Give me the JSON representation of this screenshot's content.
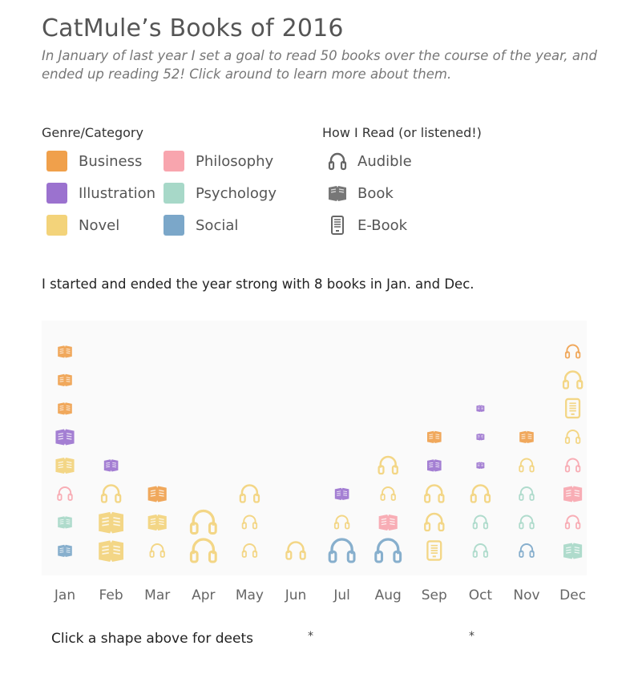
{
  "header": {
    "title": "CatMule’s Books of 2016",
    "subtitle": "In January of last year I set a goal to read 50 books over the course of the year, and ended up reading 52! Click around to learn more about them."
  },
  "legend": {
    "genre_title": "Genre/Category",
    "genres": [
      {
        "name": "Business",
        "color": "#F0A04B"
      },
      {
        "name": "Illustration",
        "color": "#9B72CF"
      },
      {
        "name": "Novel",
        "color": "#F3D37A"
      },
      {
        "name": "Philosophy",
        "color": "#F8A5AE"
      },
      {
        "name": "Psychology",
        "color": "#A7D8C8"
      },
      {
        "name": "Social",
        "color": "#7BA7C9"
      }
    ],
    "format_title": "How I Read (or listened!)",
    "formats": [
      {
        "name": "Audible",
        "icon": "headphones-icon"
      },
      {
        "name": "Book",
        "icon": "open-book-icon"
      },
      {
        "name": "E-Book",
        "icon": "ereader-icon"
      }
    ]
  },
  "note": "I started and ended the year strong with 8 books in Jan. and Dec.",
  "chart_data": {
    "type": "scatter",
    "categories": [
      "Jan",
      "Feb",
      "Mar",
      "Apr",
      "May",
      "Jun",
      "Jul",
      "Aug",
      "Sep",
      "Oct",
      "Nov",
      "Dec"
    ],
    "books_per_month": [
      8,
      4,
      3,
      2,
      3,
      1,
      3,
      4,
      5,
      6,
      5,
      8
    ],
    "books": [
      {
        "month": "Jan",
        "stack": 1,
        "genre": "Social",
        "format": "Book",
        "size": "small"
      },
      {
        "month": "Jan",
        "stack": 2,
        "genre": "Psychology",
        "format": "Book",
        "size": "small"
      },
      {
        "month": "Jan",
        "stack": 3,
        "genre": "Philosophy",
        "format": "Audible",
        "size": "small"
      },
      {
        "month": "Jan",
        "stack": 4,
        "genre": "Novel",
        "format": "Book",
        "size": "medium"
      },
      {
        "month": "Jan",
        "stack": 5,
        "genre": "Illustration",
        "format": "Book",
        "size": "medium"
      },
      {
        "month": "Jan",
        "stack": 6,
        "genre": "Business",
        "format": "Book",
        "size": "small"
      },
      {
        "month": "Jan",
        "stack": 7,
        "genre": "Business",
        "format": "Book",
        "size": "small"
      },
      {
        "month": "Jan",
        "stack": 8,
        "genre": "Business",
        "format": "Book",
        "size": "small"
      },
      {
        "month": "Feb",
        "stack": 1,
        "genre": "Novel",
        "format": "Book",
        "size": "large"
      },
      {
        "month": "Feb",
        "stack": 2,
        "genre": "Novel",
        "format": "Book",
        "size": "large"
      },
      {
        "month": "Feb",
        "stack": 3,
        "genre": "Novel",
        "format": "Audible",
        "size": "medium"
      },
      {
        "month": "Feb",
        "stack": 4,
        "genre": "Illustration",
        "format": "Book",
        "size": "small"
      },
      {
        "month": "Mar",
        "stack": 1,
        "genre": "Novel",
        "format": "Audible",
        "size": "small"
      },
      {
        "month": "Mar",
        "stack": 2,
        "genre": "Novel",
        "format": "Book",
        "size": "medium"
      },
      {
        "month": "Mar",
        "stack": 3,
        "genre": "Business",
        "format": "Book",
        "size": "medium"
      },
      {
        "month": "Apr",
        "stack": 1,
        "genre": "Novel",
        "format": "Audible",
        "size": "large"
      },
      {
        "month": "Apr",
        "stack": 2,
        "genre": "Novel",
        "format": "Audible",
        "size": "large"
      },
      {
        "month": "May",
        "stack": 1,
        "genre": "Novel",
        "format": "Audible",
        "size": "small"
      },
      {
        "month": "May",
        "stack": 2,
        "genre": "Novel",
        "format": "Audible",
        "size": "small"
      },
      {
        "month": "May",
        "stack": 3,
        "genre": "Novel",
        "format": "Audible",
        "size": "medium"
      },
      {
        "month": "Jun",
        "stack": 1,
        "genre": "Novel",
        "format": "Audible",
        "size": "medium"
      },
      {
        "month": "Jul",
        "stack": 1,
        "genre": "Social",
        "format": "Audible",
        "size": "large"
      },
      {
        "month": "Jul",
        "stack": 2,
        "genre": "Novel",
        "format": "Audible",
        "size": "small"
      },
      {
        "month": "Jul",
        "stack": 3,
        "genre": "Illustration",
        "format": "Book",
        "size": "small"
      },
      {
        "month": "Aug",
        "stack": 1,
        "genre": "Social",
        "format": "Audible",
        "size": "large"
      },
      {
        "month": "Aug",
        "stack": 2,
        "genre": "Philosophy",
        "format": "Book",
        "size": "medium"
      },
      {
        "month": "Aug",
        "stack": 3,
        "genre": "Novel",
        "format": "Audible",
        "size": "small"
      },
      {
        "month": "Aug",
        "stack": 4,
        "genre": "Novel",
        "format": "Audible",
        "size": "medium"
      },
      {
        "month": "Sep",
        "stack": 1,
        "genre": "Novel",
        "format": "E-Book",
        "size": "medium"
      },
      {
        "month": "Sep",
        "stack": 2,
        "genre": "Novel",
        "format": "Audible",
        "size": "medium"
      },
      {
        "month": "Sep",
        "stack": 3,
        "genre": "Novel",
        "format": "Audible",
        "size": "medium"
      },
      {
        "month": "Sep",
        "stack": 4,
        "genre": "Illustration",
        "format": "Book",
        "size": "small"
      },
      {
        "month": "Sep",
        "stack": 5,
        "genre": "Business",
        "format": "Book",
        "size": "small"
      },
      {
        "month": "Oct",
        "stack": 1,
        "genre": "Psychology",
        "format": "Audible",
        "size": "small"
      },
      {
        "month": "Oct",
        "stack": 2,
        "genre": "Psychology",
        "format": "Audible",
        "size": "small"
      },
      {
        "month": "Oct",
        "stack": 3,
        "genre": "Novel",
        "format": "Audible",
        "size": "medium"
      },
      {
        "month": "Oct",
        "stack": 4,
        "genre": "Illustration",
        "format": "Book",
        "size": "tiny"
      },
      {
        "month": "Oct",
        "stack": 5,
        "genre": "Illustration",
        "format": "Book",
        "size": "tiny"
      },
      {
        "month": "Oct",
        "stack": 6,
        "genre": "Illustration",
        "format": "Book",
        "size": "tiny"
      },
      {
        "month": "Nov",
        "stack": 1,
        "genre": "Social",
        "format": "Audible",
        "size": "small"
      },
      {
        "month": "Nov",
        "stack": 2,
        "genre": "Psychology",
        "format": "Audible",
        "size": "small"
      },
      {
        "month": "Nov",
        "stack": 3,
        "genre": "Psychology",
        "format": "Audible",
        "size": "small"
      },
      {
        "month": "Nov",
        "stack": 4,
        "genre": "Novel",
        "format": "Audible",
        "size": "small"
      },
      {
        "month": "Nov",
        "stack": 5,
        "genre": "Business",
        "format": "Book",
        "size": "small"
      },
      {
        "month": "Dec",
        "stack": 1,
        "genre": "Psychology",
        "format": "Book",
        "size": "medium"
      },
      {
        "month": "Dec",
        "stack": 2,
        "genre": "Philosophy",
        "format": "Audible",
        "size": "small"
      },
      {
        "month": "Dec",
        "stack": 3,
        "genre": "Philosophy",
        "format": "Book",
        "size": "medium"
      },
      {
        "month": "Dec",
        "stack": 4,
        "genre": "Philosophy",
        "format": "Audible",
        "size": "small"
      },
      {
        "month": "Dec",
        "stack": 5,
        "genre": "Novel",
        "format": "Audible",
        "size": "small"
      },
      {
        "month": "Dec",
        "stack": 6,
        "genre": "Novel",
        "format": "E-Book",
        "size": "medium"
      },
      {
        "month": "Dec",
        "stack": 7,
        "genre": "Novel",
        "format": "Audible",
        "size": "medium"
      },
      {
        "month": "Dec",
        "stack": 8,
        "genre": "Business",
        "format": "Audible",
        "size": "small"
      }
    ],
    "ylim": [
      0,
      8
    ],
    "grid": false
  },
  "footer": {
    "text": "Click a shape above for deets",
    "asterisk": "*"
  }
}
